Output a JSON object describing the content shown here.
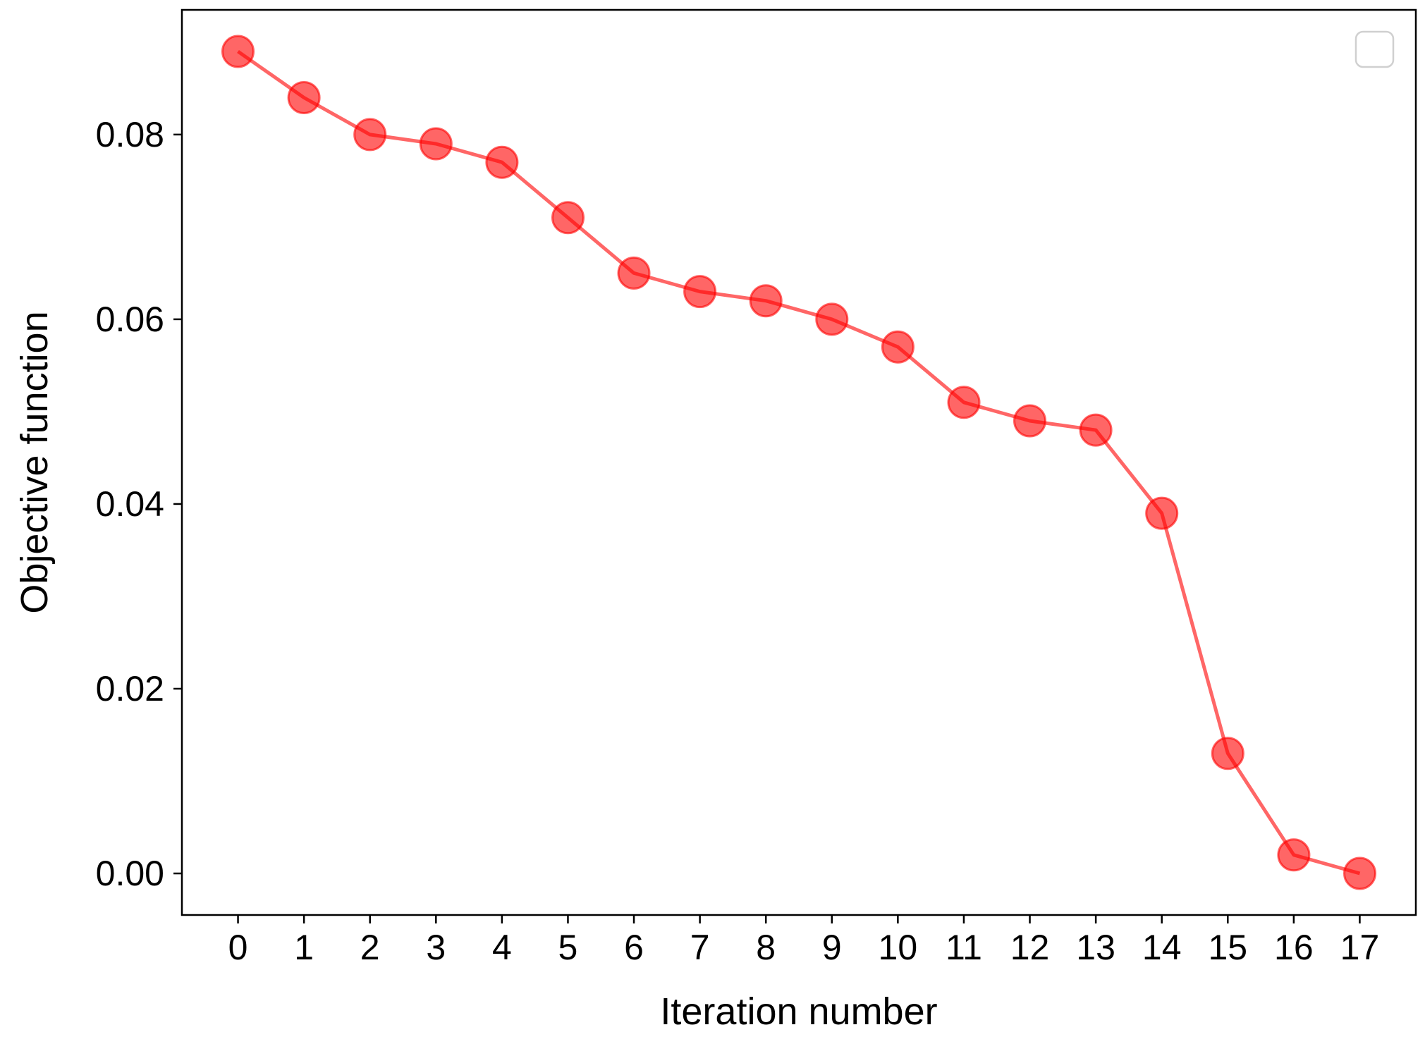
{
  "chart_data": {
    "type": "line",
    "title": "",
    "xlabel": "Iteration number",
    "ylabel": "Objective function",
    "x": [
      0,
      1,
      2,
      3,
      4,
      5,
      6,
      7,
      8,
      9,
      10,
      11,
      12,
      13,
      14,
      15,
      16,
      17
    ],
    "series": [
      {
        "values": [
          0.089,
          0.084,
          0.08,
          0.079,
          0.077,
          0.071,
          0.065,
          0.063,
          0.062,
          0.06,
          0.057,
          0.051,
          0.049,
          0.048,
          0.039,
          0.013,
          0.002,
          0.0
        ],
        "color": "#ff0000",
        "opacity": 0.6,
        "marker": "circle"
      }
    ],
    "xticks": [
      "0",
      "1",
      "2",
      "3",
      "4",
      "5",
      "6",
      "7",
      "8",
      "9",
      "10",
      "11",
      "12",
      "13",
      "14",
      "15",
      "16",
      "17"
    ],
    "yticks": [
      "0.00",
      "0.02",
      "0.04",
      "0.06",
      "0.08"
    ],
    "ytick_values": [
      0.0,
      0.02,
      0.04,
      0.06,
      0.08
    ],
    "xlim": [
      -0.85,
      17.85
    ],
    "ylim": [
      -0.0045,
      0.0935
    ],
    "grid": false,
    "legend": "top-right (empty)"
  }
}
